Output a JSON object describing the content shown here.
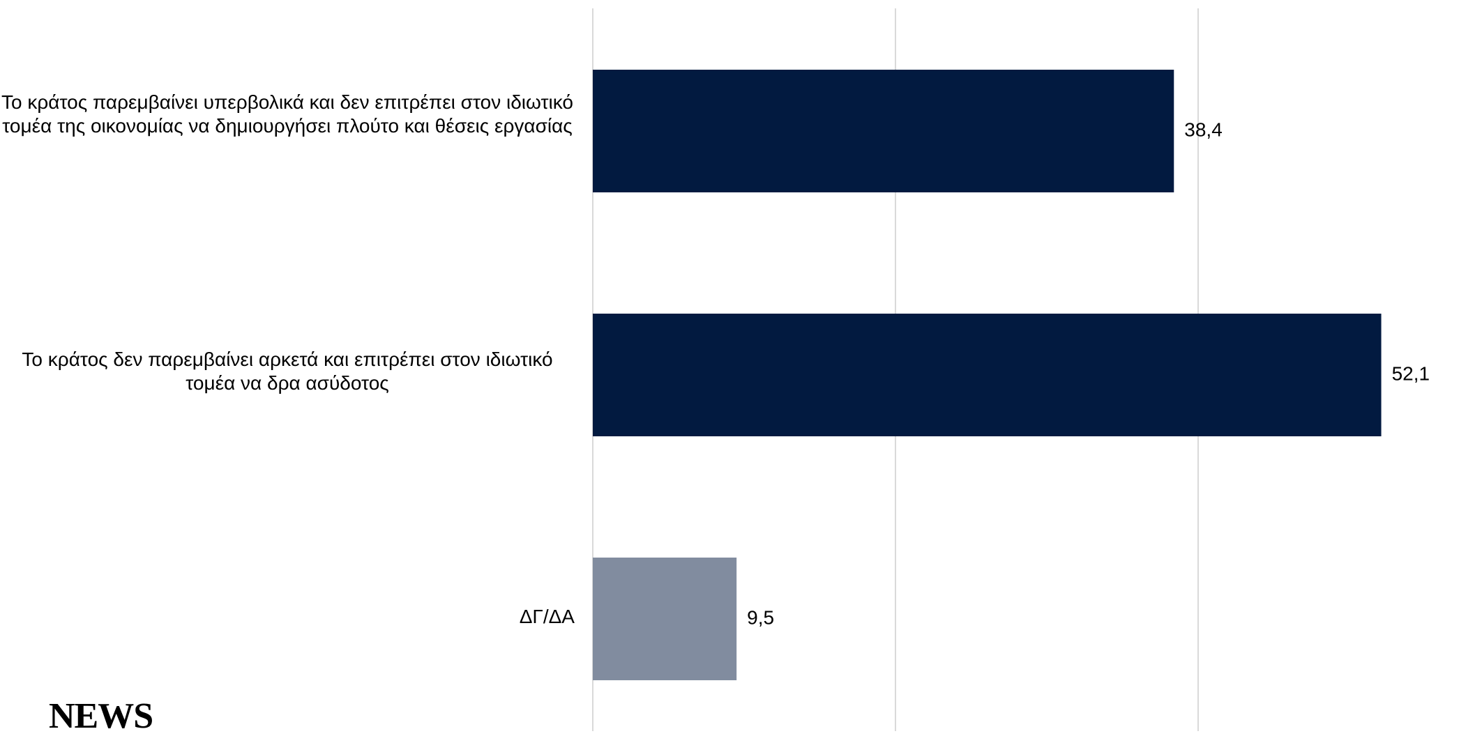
{
  "chart_data": {
    "type": "bar",
    "orientation": "horizontal",
    "categories": [
      "Το κράτος παρεμβαίνει υπερβολικά και δεν επιτρέπει στον ιδιωτικό τομέα της οικονομίας να δημιουργήσει πλούτο και θέσεις εργασίας",
      "Το κράτος δεν παρεμβαίνει αρκετά και επιτρέπει στον ιδιωτικό τομέα να δρα ασύδοτος",
      "ΔΓ/ΔΑ"
    ],
    "values": [
      38.4,
      52.1,
      9.5
    ],
    "value_labels": [
      "38,4",
      "52,1",
      "9,5"
    ],
    "colors": [
      "#021a40",
      "#021a40",
      "#818c9f"
    ],
    "xlim": [
      0,
      60
    ],
    "grid": true,
    "gridline_values": [
      0,
      20,
      40
    ],
    "gridline_color": "#d9d9d9",
    "legend": "none"
  },
  "brand": {
    "logo_text": "NEWS"
  }
}
